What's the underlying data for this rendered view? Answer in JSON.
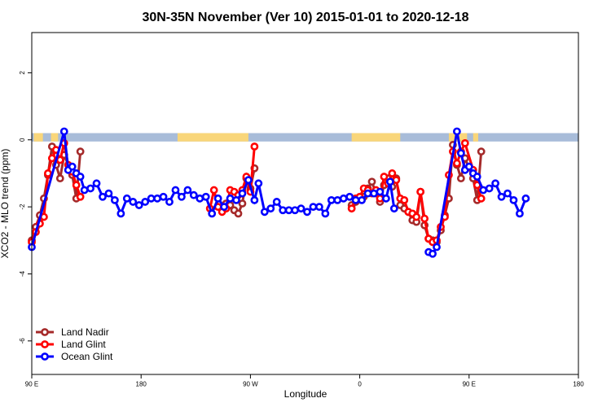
{
  "chart_data": {
    "type": "line",
    "title": "30N-35N November (Ver 10)   2015-01-01 to 2020-12-18",
    "xlabel": "Longitude",
    "ylabel": "XCO2 - MLO trend (ppm)",
    "xlim": [
      -90,
      180
    ],
    "ylim": [
      -7,
      3.2
    ],
    "x_ticks": [
      {
        "value": -90,
        "label": "90 E"
      },
      {
        "value": -36,
        "label": "180"
      },
      {
        "value": 18,
        "label": "90 W"
      },
      {
        "value": 72,
        "label": "0"
      },
      {
        "value": 126,
        "label": "90 E"
      },
      {
        "value": 180,
        "label": "180"
      }
    ],
    "y_ticks": [
      {
        "value": 2,
        "label": "2"
      },
      {
        "value": 0,
        "label": "0"
      },
      {
        "value": -2,
        "label": "-2"
      },
      {
        "value": -4,
        "label": "-4"
      },
      {
        "value": -6,
        "label": "-6"
      }
    ],
    "surface_band": {
      "y_top": 0.2,
      "y_bottom": -0.05,
      "land_color": "#F9D67A",
      "ocean_color": "#A8BCD9",
      "land_segments": [
        [
          -89,
          -84.5
        ],
        [
          -80.5,
          -77
        ],
        [
          -18,
          17
        ],
        [
          68,
          92
        ],
        [
          116,
          125
        ],
        [
          128,
          130.5
        ]
      ]
    },
    "series": [
      {
        "name": "Land Nadir",
        "color": "#A52A2A",
        "segments": [
          [
            [
              -90,
              -3.0
            ],
            [
              -88,
              -2.6
            ],
            [
              -86,
              -2.25
            ],
            [
              -84,
              -1.75
            ],
            [
              -82,
              -1.05
            ],
            [
              -80,
              -0.2
            ],
            [
              -78,
              -0.75
            ],
            [
              -76,
              -1.15
            ],
            [
              -74,
              -0.45
            ],
            [
              -70,
              -1.05
            ],
            [
              -68,
              -1.75
            ],
            [
              -66,
              -0.35
            ]
          ],
          [
            [
              6,
              -1.9
            ],
            [
              8,
              -1.95
            ],
            [
              10,
              -2.1
            ],
            [
              12,
              -2.2
            ],
            [
              14,
              -1.9
            ],
            [
              16,
              -1.15
            ],
            [
              18,
              -1.45
            ],
            [
              20,
              -0.85
            ]
          ],
          [
            [
              68,
              -1.95
            ],
            [
              70,
              -1.85
            ],
            [
              72,
              -1.75
            ],
            [
              74,
              -1.7
            ],
            [
              76,
              -1.45
            ],
            [
              78,
              -1.25
            ],
            [
              80,
              -1.6
            ],
            [
              82,
              -1.85
            ],
            [
              84,
              -1.35
            ],
            [
              86,
              -1.15
            ],
            [
              88,
              -1.4
            ],
            [
              90,
              -1.15
            ],
            [
              92,
              -1.95
            ],
            [
              94,
              -2.05
            ],
            [
              96,
              -2.15
            ],
            [
              98,
              -2.4
            ],
            [
              100,
              -2.45
            ],
            [
              102,
              -1.55
            ],
            [
              104,
              -2.55
            ],
            [
              106,
              -2.95
            ],
            [
              108,
              -3.0
            ],
            [
              110,
              -3.05
            ],
            [
              112,
              -2.7
            ],
            [
              114,
              -2.25
            ],
            [
              116,
              -1.75
            ],
            [
              118,
              -0.15
            ],
            [
              120,
              -0.75
            ],
            [
              122,
              -1.15
            ],
            [
              124,
              -0.55
            ],
            [
              128,
              -1.15
            ],
            [
              130,
              -1.8
            ],
            [
              132,
              -0.35
            ]
          ]
        ]
      },
      {
        "name": "Land Glint",
        "color": "#FF0000",
        "segments": [
          [
            [
              -90,
              -3.05
            ],
            [
              -88,
              -2.75
            ],
            [
              -86,
              -2.5
            ],
            [
              -84,
              -2.3
            ],
            [
              -82,
              -1.0
            ],
            [
              -80,
              -0.55
            ],
            [
              -78,
              -0.3
            ],
            [
              -76,
              -0.6
            ],
            [
              -74,
              -0.1
            ],
            [
              -72,
              -0.75
            ],
            [
              -70,
              -0.95
            ],
            [
              -68,
              -1.35
            ],
            [
              -66,
              -1.7
            ]
          ],
          [
            [
              -2,
              -2.05
            ],
            [
              0,
              -1.5
            ],
            [
              2,
              -2.0
            ],
            [
              4,
              -2.15
            ],
            [
              6,
              -2.05
            ],
            [
              8,
              -1.5
            ],
            [
              10,
              -1.55
            ],
            [
              12,
              -1.65
            ],
            [
              14,
              -1.5
            ],
            [
              16,
              -1.1
            ],
            [
              18,
              -1.55
            ],
            [
              20,
              -0.2
            ]
          ],
          [
            [
              68,
              -2.05
            ],
            [
              70,
              -1.75
            ],
            [
              72,
              -1.7
            ],
            [
              74,
              -1.45
            ],
            [
              76,
              -1.5
            ],
            [
              78,
              -1.6
            ],
            [
              80,
              -1.5
            ],
            [
              82,
              -1.75
            ],
            [
              84,
              -1.1
            ],
            [
              86,
              -1.3
            ],
            [
              88,
              -1.0
            ],
            [
              90,
              -1.2
            ],
            [
              92,
              -1.75
            ],
            [
              94,
              -1.8
            ],
            [
              96,
              -2.15
            ],
            [
              98,
              -2.2
            ],
            [
              100,
              -2.3
            ],
            [
              102,
              -1.55
            ],
            [
              104,
              -2.35
            ],
            [
              106,
              -2.95
            ],
            [
              108,
              -3.05
            ],
            [
              110,
              -3.0
            ],
            [
              112,
              -2.6
            ],
            [
              114,
              -2.3
            ],
            [
              116,
              -1.05
            ],
            [
              118,
              -0.35
            ],
            [
              120,
              -0.7
            ],
            [
              122,
              -0.35
            ],
            [
              124,
              -0.1
            ],
            [
              128,
              -0.9
            ],
            [
              130,
              -1.35
            ],
            [
              132,
              -1.75
            ]
          ]
        ]
      },
      {
        "name": "Ocean Glint",
        "color": "#0000FF",
        "segments": [
          [
            [
              -90,
              -3.2
            ],
            [
              -74,
              0.25
            ],
            [
              -72,
              -0.9
            ],
            [
              -70,
              -0.8
            ],
            [
              -68,
              -1.0
            ],
            [
              -66,
              -1.1
            ],
            [
              -64,
              -1.5
            ],
            [
              -61,
              -1.45
            ],
            [
              -58,
              -1.3
            ],
            [
              -55,
              -1.7
            ],
            [
              -52,
              -1.6
            ],
            [
              -49,
              -1.8
            ],
            [
              -46,
              -2.2
            ],
            [
              -43,
              -1.75
            ],
            [
              -40,
              -1.85
            ],
            [
              -37,
              -1.95
            ],
            [
              -34,
              -1.85
            ],
            [
              -31,
              -1.75
            ],
            [
              -28,
              -1.75
            ],
            [
              -25,
              -1.7
            ],
            [
              -22,
              -1.85
            ],
            [
              -19,
              -1.5
            ],
            [
              -16,
              -1.7
            ],
            [
              -13,
              -1.5
            ],
            [
              -10,
              -1.65
            ],
            [
              -7,
              -1.75
            ],
            [
              -4,
              -1.7
            ],
            [
              -1,
              -2.2
            ],
            [
              2,
              -1.75
            ],
            [
              5,
              -2.0
            ],
            [
              8,
              -1.75
            ],
            [
              11,
              -1.8
            ],
            [
              14,
              -1.6
            ],
            [
              17,
              -1.2
            ],
            [
              20,
              -1.8
            ],
            [
              22,
              -1.3
            ],
            [
              25,
              -2.15
            ],
            [
              28,
              -2.05
            ],
            [
              31,
              -1.85
            ],
            [
              34,
              -2.1
            ],
            [
              37,
              -2.1
            ],
            [
              40,
              -2.1
            ],
            [
              43,
              -2.05
            ],
            [
              46,
              -2.15
            ],
            [
              49,
              -2.0
            ],
            [
              52,
              -2.0
            ],
            [
              55,
              -2.2
            ],
            [
              58,
              -1.8
            ],
            [
              61,
              -1.8
            ],
            [
              64,
              -1.75
            ],
            [
              67,
              -1.7
            ],
            [
              70,
              -1.8
            ],
            [
              73,
              -1.8
            ],
            [
              76,
              -1.6
            ],
            [
              79,
              -1.6
            ],
            [
              82,
              -1.55
            ],
            [
              85,
              -1.75
            ],
            [
              87,
              -1.25
            ],
            [
              89,
              -2.05
            ]
          ],
          [
            [
              106,
              -3.35
            ],
            [
              108,
              -3.4
            ],
            [
              110,
              -3.2
            ],
            [
              120,
              0.25
            ],
            [
              122,
              -0.4
            ],
            [
              124,
              -0.9
            ],
            [
              126,
              -0.8
            ],
            [
              128,
              -1.0
            ],
            [
              130,
              -1.1
            ],
            [
              133,
              -1.5
            ],
            [
              136,
              -1.45
            ],
            [
              139,
              -1.3
            ],
            [
              142,
              -1.7
            ],
            [
              145,
              -1.6
            ],
            [
              148,
              -1.8
            ],
            [
              151,
              -2.2
            ],
            [
              154,
              -1.75
            ]
          ]
        ]
      }
    ],
    "legend": {
      "position": "bottom-left",
      "entries": [
        "Land Nadir",
        "Land Glint",
        "Ocean Glint"
      ]
    }
  }
}
